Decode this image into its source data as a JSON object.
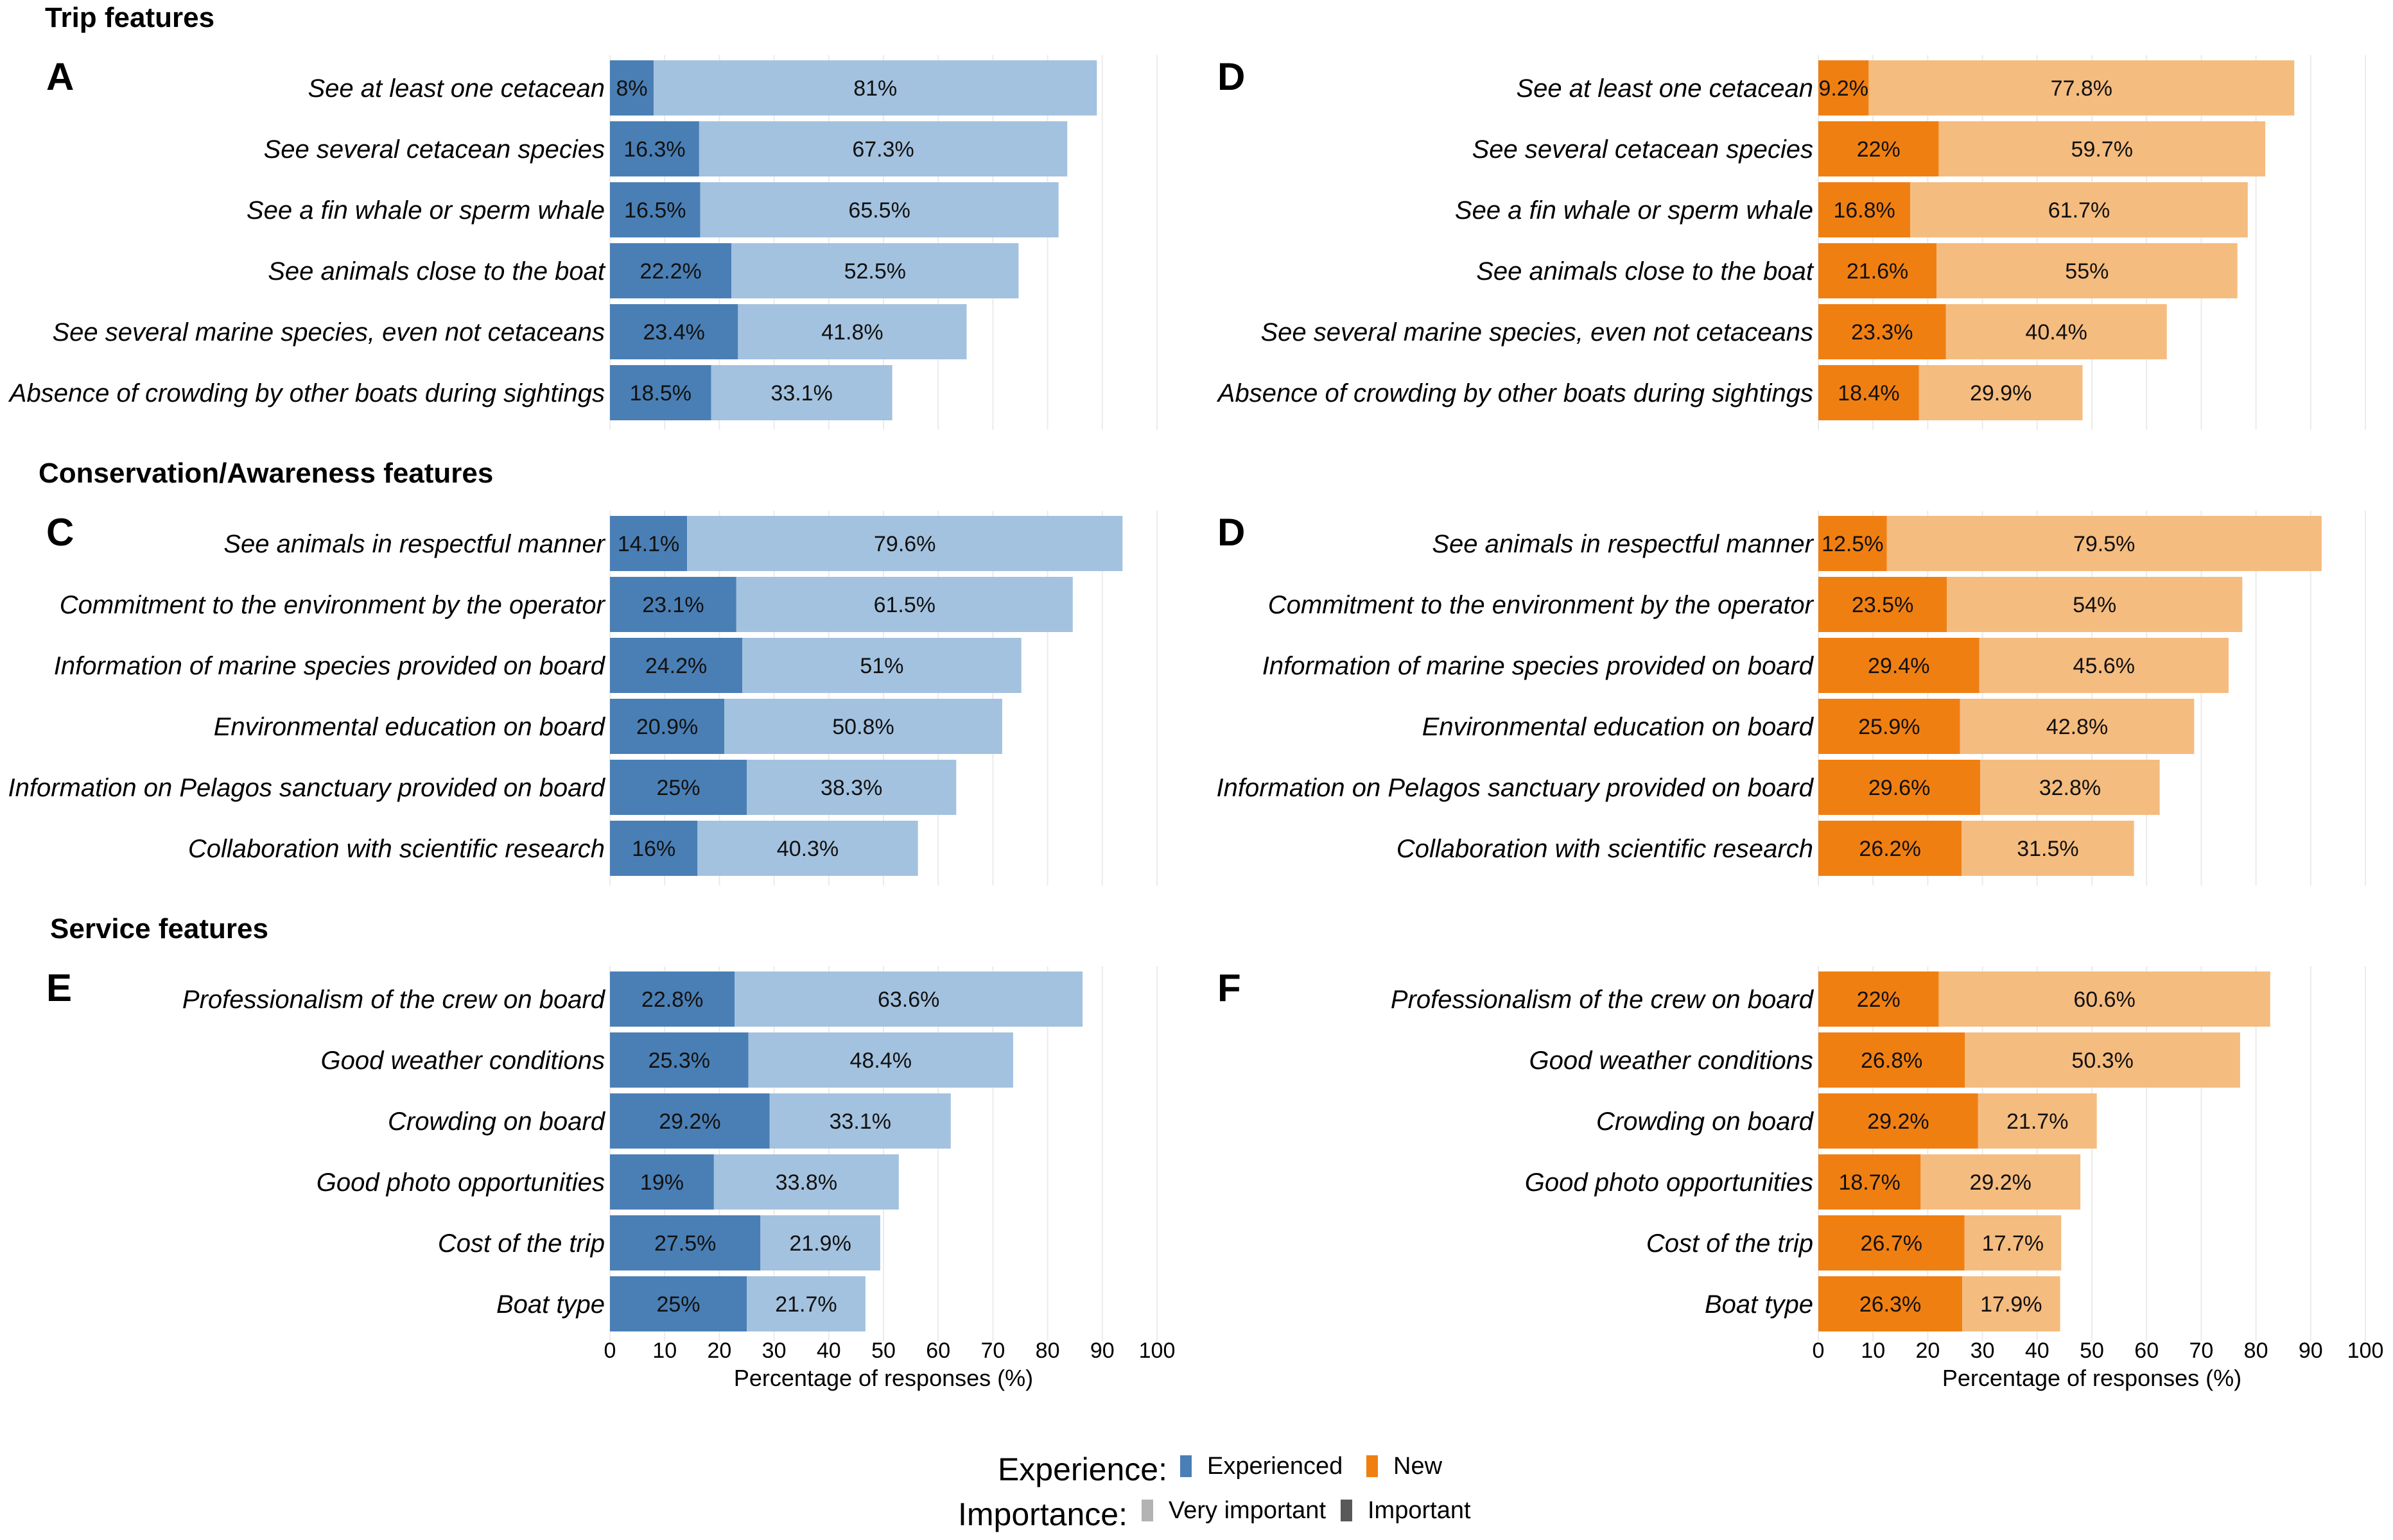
{
  "chart_data": {
    "type": "bar",
    "orientation": "horizontal",
    "stacked": true,
    "xlabel": "Percentage of responses (%)",
    "xlim": [
      0,
      100
    ],
    "xticks": [
      0,
      10,
      20,
      30,
      40,
      50,
      60,
      70,
      80,
      90,
      100
    ],
    "colors": {
      "experienced_important": "#4a7fb5",
      "experienced_very_important": "#a3c2df",
      "new_important": "#f07f12",
      "new_very_important": "#f5bc7f"
    },
    "legend": {
      "experience_title": "Experience:",
      "experience_items": [
        "Experienced",
        "New"
      ],
      "importance_title": "Importance:",
      "importance_items": [
        "Very important",
        "Important"
      ],
      "experience_swatch_colors": [
        "#4a7fb5",
        "#f07f12"
      ],
      "importance_swatch_colors": [
        "#b3b3b3",
        "#595959"
      ]
    },
    "sections": [
      {
        "title": "Trip features",
        "categories": [
          "See at least one cetacean",
          "See several cetacean species",
          "See a fin whale or sperm whale",
          "See animals close to the boat",
          "See several marine species, even not cetaceans",
          "Absence of crowding by other boats during sightings"
        ],
        "panels": [
          {
            "letter": "A",
            "group": "Experienced",
            "important": [
              8,
              16.3,
              16.5,
              22.2,
              23.4,
              18.5
            ],
            "important_labels": [
              "8%",
              "16.3%",
              "16.5%",
              "22.2%",
              "23.4%",
              "18.5%"
            ],
            "very_important": [
              81,
              67.3,
              65.5,
              52.5,
              41.8,
              33.1
            ],
            "very_important_labels": [
              "81%",
              "67.3%",
              "65.5%",
              "52.5%",
              "41.8%",
              "33.1%"
            ]
          },
          {
            "letter": "D",
            "group": "New",
            "important": [
              9.2,
              22,
              16.8,
              21.6,
              23.3,
              18.4
            ],
            "important_labels": [
              "9.2%",
              "22%",
              "16.8%",
              "21.6%",
              "23.3%",
              "18.4%"
            ],
            "very_important": [
              77.8,
              59.7,
              61.7,
              55,
              40.4,
              29.9
            ],
            "very_important_labels": [
              "77.8%",
              "59.7%",
              "61.7%",
              "55%",
              "40.4%",
              "29.9%"
            ]
          }
        ]
      },
      {
        "title": "Conservation/Awareness features",
        "categories": [
          "See animals in respectful manner",
          "Commitment to the environment by the operator",
          "Information of marine species provided on board",
          "Environmental education on board",
          "Information on Pelagos sanctuary provided on board",
          "Collaboration with scientific research"
        ],
        "panels": [
          {
            "letter": "C",
            "group": "Experienced",
            "important": [
              14.1,
              23.1,
              24.2,
              20.9,
              25,
              16
            ],
            "important_labels": [
              "14.1%",
              "23.1%",
              "24.2%",
              "20.9%",
              "25%",
              "16%"
            ],
            "very_important": [
              79.6,
              61.5,
              51,
              50.8,
              38.3,
              40.3
            ],
            "very_important_labels": [
              "79.6%",
              "61.5%",
              "51%",
              "50.8%",
              "38.3%",
              "40.3%"
            ]
          },
          {
            "letter": "D",
            "group": "New",
            "important": [
              12.5,
              23.5,
              29.4,
              25.9,
              29.6,
              26.2
            ],
            "important_labels": [
              "12.5%",
              "23.5%",
              "29.4%",
              "25.9%",
              "29.6%",
              "26.2%"
            ],
            "very_important": [
              79.5,
              54,
              45.6,
              42.8,
              32.8,
              31.5
            ],
            "very_important_labels": [
              "79.5%",
              "54%",
              "45.6%",
              "42.8%",
              "32.8%",
              "31.5%"
            ]
          }
        ]
      },
      {
        "title": "Service features",
        "categories": [
          "Professionalism of the crew on board",
          "Good weather conditions",
          "Crowding on board",
          "Good photo opportunities",
          "Cost of the trip",
          "Boat type"
        ],
        "panels": [
          {
            "letter": "E",
            "group": "Experienced",
            "important": [
              22.8,
              25.3,
              29.2,
              19,
              27.5,
              25
            ],
            "important_labels": [
              "22.8%",
              "25.3%",
              "29.2%",
              "19%",
              "27.5%",
              "25%"
            ],
            "very_important": [
              63.6,
              48.4,
              33.1,
              33.8,
              21.9,
              21.7
            ],
            "very_important_labels": [
              "63.6%",
              "48.4%",
              "33.1%",
              "33.8%",
              "21.9%",
              "21.7%"
            ]
          },
          {
            "letter": "F",
            "group": "New",
            "important": [
              22,
              26.8,
              29.2,
              18.7,
              26.7,
              26.3
            ],
            "important_labels": [
              "22%",
              "26.8%",
              "29.2%",
              "18.7%",
              "26.7%",
              "26.3%"
            ],
            "very_important": [
              60.6,
              50.3,
              21.7,
              29.2,
              17.7,
              17.9
            ],
            "very_important_labels": [
              "60.6%",
              "50.3%",
              "21.7%",
              "29.2%",
              "17.7%",
              "17.9%"
            ]
          }
        ]
      }
    ]
  }
}
